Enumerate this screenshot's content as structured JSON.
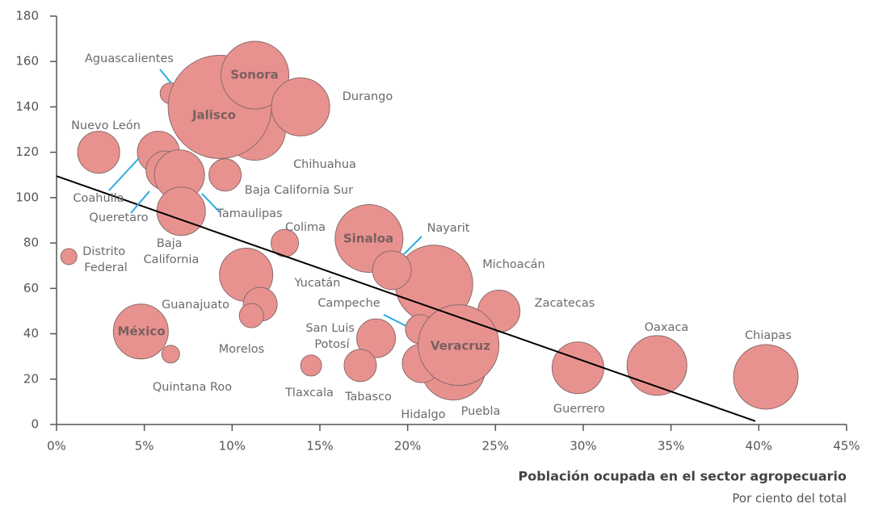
{
  "chart_data": {
    "type": "bubble",
    "xlabel": "Población ocupada en el sector agropecuario",
    "xsublabel": "Por ciento del total",
    "labels": [
      "Aguascalientes",
      "Chihuahua",
      "Jalisco",
      "Sonora",
      "Durango",
      "Nuevo León",
      "Coahuila",
      "Queretaro",
      "Tamaulipas",
      "Baja California Sur",
      "Baja California",
      "Colima",
      "Distrito Federal",
      "Sinaloa",
      "Michoacán",
      "Nayarit",
      "Yucatán",
      "Guanajuato",
      "Morelos",
      "Zacatecas",
      "Campeche",
      "México",
      "San Luis Potosí",
      "Puebla",
      "Hidalgo",
      "Veracruz",
      "Quintana Roo",
      "Tlaxcala",
      "Tabasco",
      "Guerrero",
      "Oaxaca",
      "Chiapas"
    ],
    "x": [
      6.5,
      11.3,
      9.3,
      11.3,
      13.9,
      2.4,
      5.8,
      6.2,
      7.0,
      9.6,
      7.1,
      13.0,
      0.7,
      17.8,
      21.5,
      19.1,
      10.8,
      11.6,
      11.1,
      25.2,
      20.7,
      4.8,
      18.2,
      22.6,
      20.8,
      22.9,
      6.5,
      14.5,
      17.3,
      29.7,
      34.2,
      40.4
    ],
    "y": [
      146,
      130,
      140,
      154,
      140,
      120,
      120,
      112,
      110,
      110,
      94,
      80,
      74,
      82,
      62,
      68,
      66,
      53,
      48,
      50,
      42,
      41,
      38,
      25,
      27,
      35,
      31,
      26,
      26,
      25,
      26,
      21
    ],
    "sizes": [
      13,
      38,
      64,
      42,
      36,
      26,
      26,
      24,
      31,
      20,
      30,
      17,
      10,
      42,
      48,
      24,
      33,
      21,
      15,
      26,
      18,
      34,
      24,
      40,
      24,
      50,
      11,
      13,
      20,
      32,
      37,
      40
    ],
    "trend": {
      "x": [
        0,
        39.8
      ],
      "y": [
        109.5,
        1.5
      ]
    },
    "color": "#e8928f",
    "xlim": [
      0,
      45
    ],
    "xticks": [
      {
        "value": 0,
        "label": "0%"
      },
      {
        "value": 5,
        "label": "5%"
      },
      {
        "value": 10,
        "label": "10%"
      },
      {
        "value": 15,
        "label": "15%"
      },
      {
        "value": 20,
        "label": "20%"
      },
      {
        "value": 25,
        "label": "25%"
      },
      {
        "value": 30,
        "label": "30%"
      },
      {
        "value": 35,
        "label": "35%"
      },
      {
        "value": 40,
        "label": "40%"
      },
      {
        "value": 45,
        "label": "45%"
      }
    ],
    "ylim": [
      0,
      180
    ],
    "yticks": [
      0,
      20,
      40,
      60,
      80,
      100,
      120,
      140,
      160,
      180
    ]
  }
}
